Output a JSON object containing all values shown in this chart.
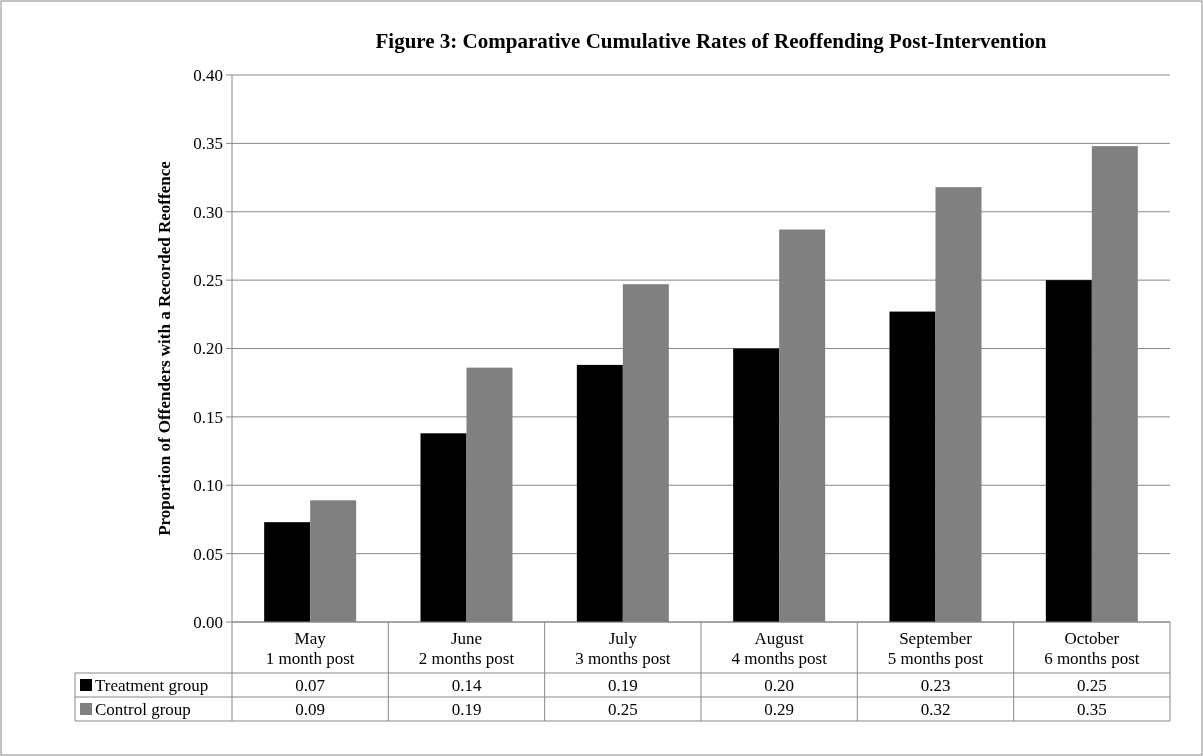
{
  "chart_data": {
    "type": "bar",
    "title": "Figure 3: Comparative Cumulative Rates of Reoffending Post-Intervention",
    "ylabel": "Proportion of Offenders with a Recorded Reoffence",
    "categories": [
      "May\n1 month post",
      "June\n2 months post",
      "July\n3 months post",
      "August\n4 months post",
      "September\n5 months post",
      "October\n6 months post"
    ],
    "series": [
      {
        "name": "Treatment group",
        "color": "#000000",
        "values": [
          0.073,
          0.138,
          0.188,
          0.2,
          0.227,
          0.25
        ],
        "value_labels": [
          "0.07",
          "0.14",
          "0.19",
          "0.20",
          "0.23",
          "0.25"
        ]
      },
      {
        "name": "Control group",
        "color": "#808080",
        "values": [
          0.089,
          0.186,
          0.247,
          0.287,
          0.318,
          0.348
        ],
        "value_labels": [
          "0.09",
          "0.19",
          "0.25",
          "0.29",
          "0.32",
          "0.35"
        ]
      }
    ],
    "ylim": [
      0,
      0.4
    ],
    "yticks": [
      {
        "value": 0,
        "label": "0.00"
      },
      {
        "value": 0.05,
        "label": "0.05"
      },
      {
        "value": 0.1,
        "label": "0.10"
      },
      {
        "value": 0.15,
        "label": "0.15"
      },
      {
        "value": 0.2,
        "label": "0.20"
      },
      {
        "value": 0.25,
        "label": "0.25"
      },
      {
        "value": 0.3,
        "label": "0.30"
      },
      {
        "value": 0.35,
        "label": "0.35"
      },
      {
        "value": 0.4,
        "label": "0.40"
      }
    ],
    "grid": "y",
    "legend": "bottom"
  }
}
